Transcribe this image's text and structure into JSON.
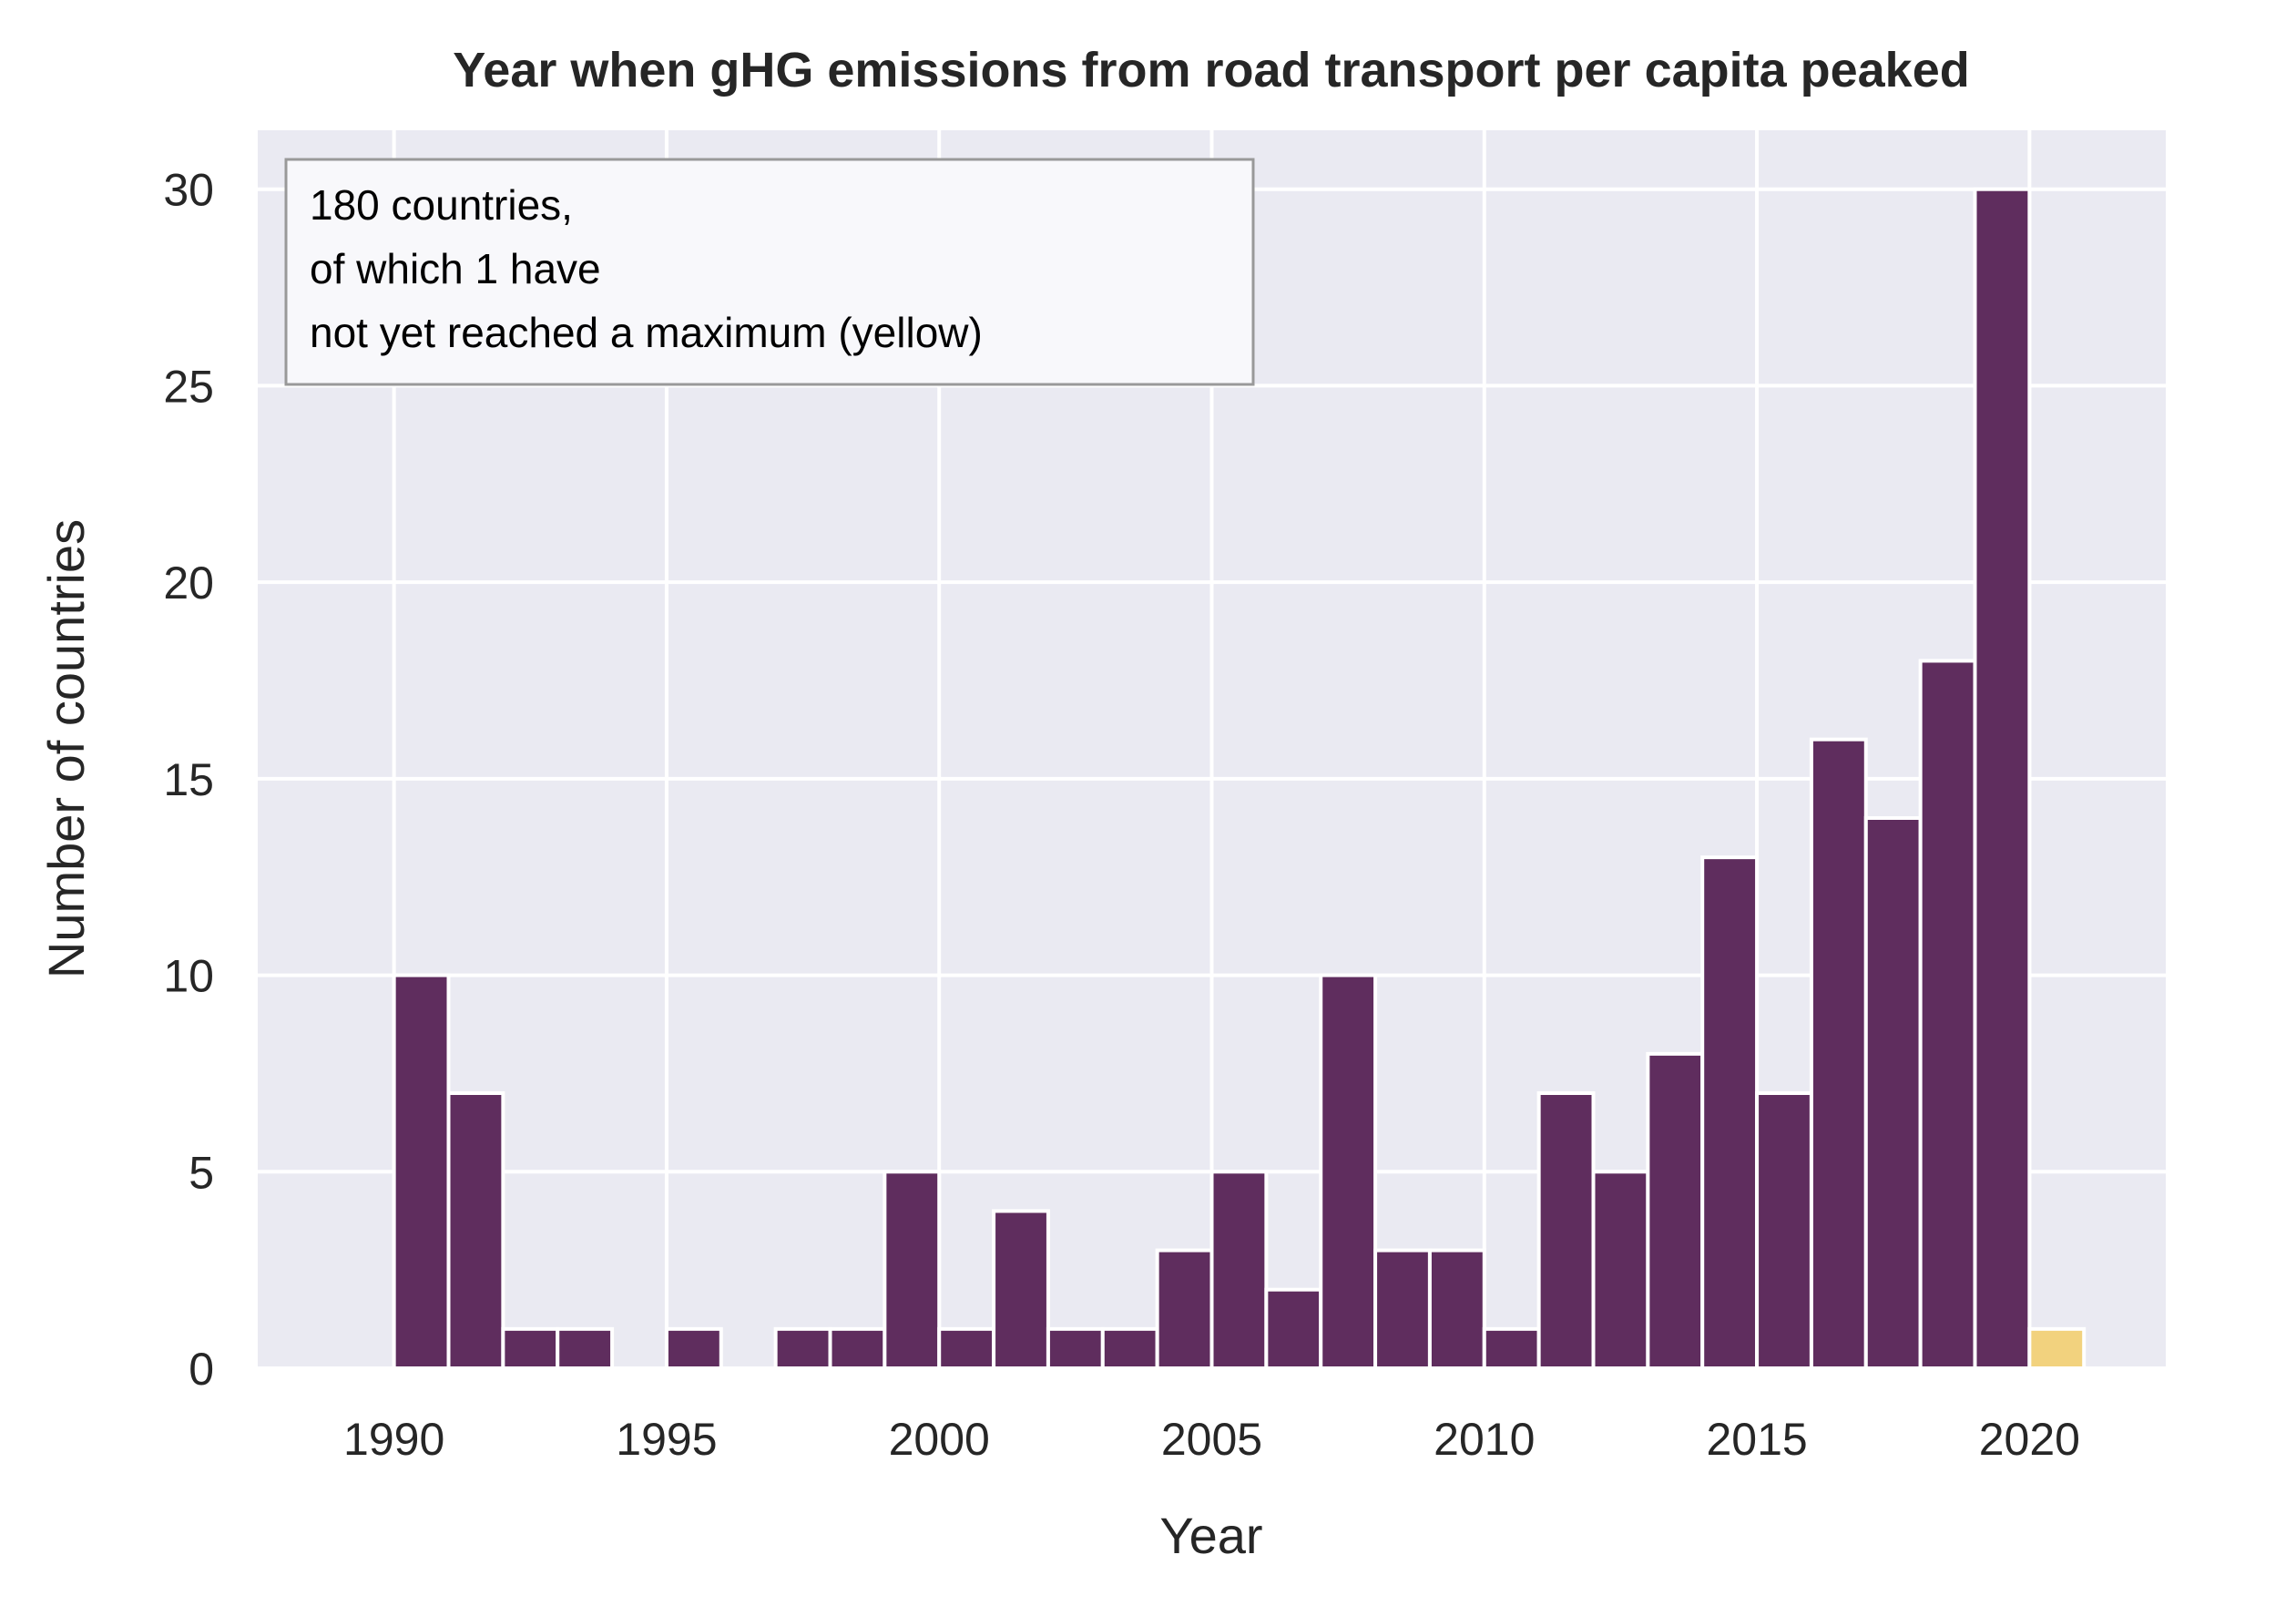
{
  "chart_data": {
    "type": "bar",
    "title": "Year when gHG emissions from road transport per capita peaked",
    "xlabel": "Year",
    "ylabel": "Number of countries",
    "xlim": [
      1987.5,
      2022.5
    ],
    "ylim": [
      0,
      31.5
    ],
    "xticks": [
      1990,
      1995,
      2000,
      2005,
      2010,
      2015,
      2020
    ],
    "yticks": [
      0,
      5,
      10,
      15,
      20,
      25,
      30
    ],
    "grid": true,
    "bin_width": 1,
    "annotation": {
      "lines": [
        "180 countries,",
        "of which 1 have",
        "not yet reached a maximum (yellow)"
      ],
      "placement": "top-left"
    },
    "series": [
      {
        "color": "#5f2d5e",
        "x": [
          1990,
          1991,
          1992,
          1993,
          1995,
          1997,
          1998,
          1999,
          2000,
          2001,
          2002,
          2003,
          2004,
          2005,
          2006,
          2007,
          2008,
          2009,
          2010,
          2011,
          2012,
          2013,
          2014,
          2015,
          2016,
          2017,
          2018,
          2019
        ],
        "values": [
          10,
          7,
          1,
          1,
          1,
          1,
          1,
          5,
          1,
          4,
          1,
          1,
          3,
          5,
          2,
          10,
          3,
          3,
          1,
          7,
          5,
          8,
          13,
          7,
          16,
          14,
          18,
          30
        ]
      },
      {
        "color": "#f2d27e",
        "x": [
          2020
        ],
        "values": [
          1
        ]
      }
    ]
  }
}
